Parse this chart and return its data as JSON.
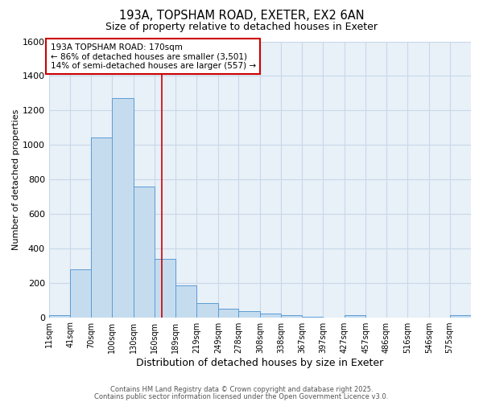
{
  "title_line1": "193A, TOPSHAM ROAD, EXETER, EX2 6AN",
  "title_line2": "Size of property relative to detached houses in Exeter",
  "xlabel": "Distribution of detached houses by size in Exeter",
  "ylabel": "Number of detached properties",
  "bins": [
    11,
    41,
    70,
    100,
    130,
    160,
    189,
    219,
    249,
    278,
    308,
    338,
    367,
    397,
    427,
    457,
    486,
    516,
    546,
    575,
    605
  ],
  "bar_heights": [
    10,
    280,
    1045,
    1270,
    760,
    340,
    185,
    80,
    48,
    35,
    20,
    10,
    5,
    0,
    10,
    0,
    0,
    0,
    0,
    10
  ],
  "bar_color": "#c5dcef",
  "bar_edgecolor": "#5b9bd5",
  "grid_color": "#c8d8e8",
  "background_color": "#e8f0f8",
  "property_line_x": 170,
  "property_line_color": "#cc0000",
  "annotation_text": "193A TOPSHAM ROAD: 170sqm\n← 86% of detached houses are smaller (3,501)\n14% of semi-detached houses are larger (557) →",
  "annotation_box_facecolor": "#ffffff",
  "annotation_box_edgecolor": "#cc0000",
  "ylim": [
    0,
    1600
  ],
  "yticks": [
    0,
    200,
    400,
    600,
    800,
    1000,
    1200,
    1400,
    1600
  ],
  "footer_line1": "Contains HM Land Registry data © Crown copyright and database right 2025.",
  "footer_line2": "Contains public sector information licensed under the Open Government Licence v3.0."
}
